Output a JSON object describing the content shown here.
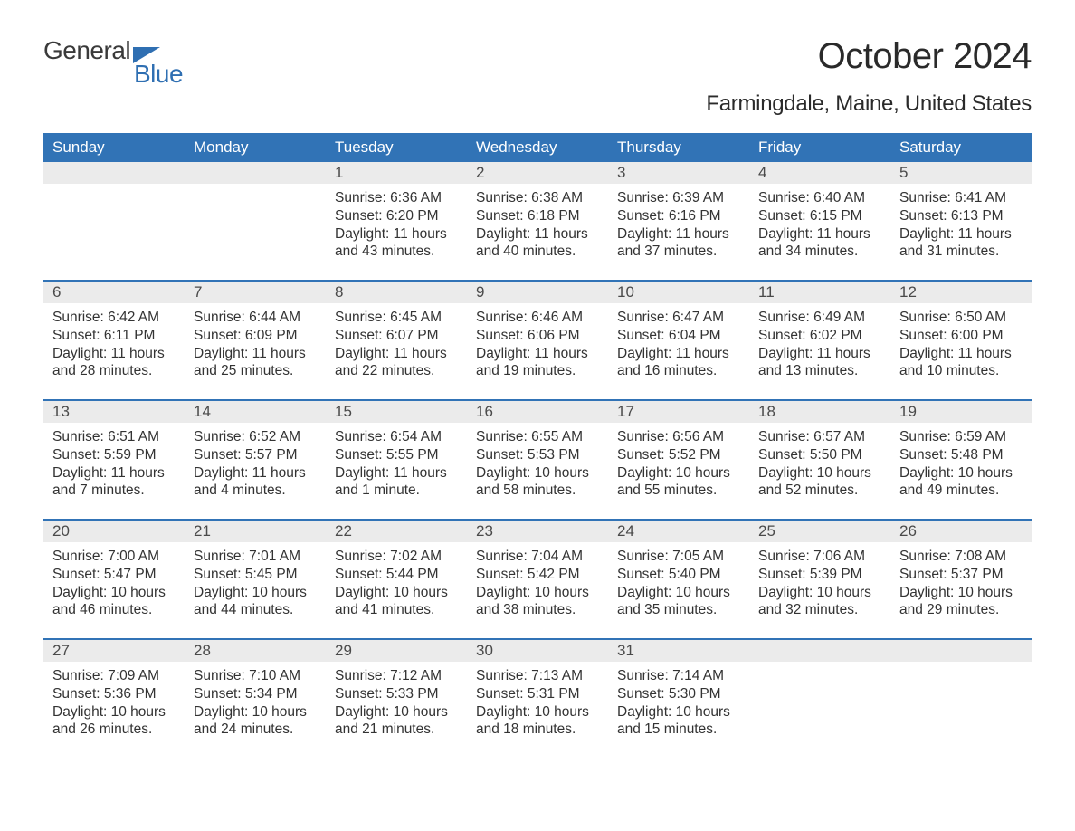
{
  "logo": {
    "word1": "General",
    "word2": "Blue"
  },
  "title": "October 2024",
  "location": "Farmingdale, Maine, United States",
  "colors": {
    "header_bg": "#3173b6",
    "header_text": "#ffffff",
    "daynum_bg": "#ebebeb",
    "body_text": "#333333",
    "logo_blue": "#2f6fb2",
    "week_border": "#3173b6"
  },
  "weekdays": [
    "Sunday",
    "Monday",
    "Tuesday",
    "Wednesday",
    "Thursday",
    "Friday",
    "Saturday"
  ],
  "weeks": [
    [
      {
        "n": "",
        "sunrise": "",
        "sunset": "",
        "daylight": ""
      },
      {
        "n": "",
        "sunrise": "",
        "sunset": "",
        "daylight": ""
      },
      {
        "n": "1",
        "sunrise": "Sunrise: 6:36 AM",
        "sunset": "Sunset: 6:20 PM",
        "daylight": "Daylight: 11 hours and 43 minutes."
      },
      {
        "n": "2",
        "sunrise": "Sunrise: 6:38 AM",
        "sunset": "Sunset: 6:18 PM",
        "daylight": "Daylight: 11 hours and 40 minutes."
      },
      {
        "n": "3",
        "sunrise": "Sunrise: 6:39 AM",
        "sunset": "Sunset: 6:16 PM",
        "daylight": "Daylight: 11 hours and 37 minutes."
      },
      {
        "n": "4",
        "sunrise": "Sunrise: 6:40 AM",
        "sunset": "Sunset: 6:15 PM",
        "daylight": "Daylight: 11 hours and 34 minutes."
      },
      {
        "n": "5",
        "sunrise": "Sunrise: 6:41 AM",
        "sunset": "Sunset: 6:13 PM",
        "daylight": "Daylight: 11 hours and 31 minutes."
      }
    ],
    [
      {
        "n": "6",
        "sunrise": "Sunrise: 6:42 AM",
        "sunset": "Sunset: 6:11 PM",
        "daylight": "Daylight: 11 hours and 28 minutes."
      },
      {
        "n": "7",
        "sunrise": "Sunrise: 6:44 AM",
        "sunset": "Sunset: 6:09 PM",
        "daylight": "Daylight: 11 hours and 25 minutes."
      },
      {
        "n": "8",
        "sunrise": "Sunrise: 6:45 AM",
        "sunset": "Sunset: 6:07 PM",
        "daylight": "Daylight: 11 hours and 22 minutes."
      },
      {
        "n": "9",
        "sunrise": "Sunrise: 6:46 AM",
        "sunset": "Sunset: 6:06 PM",
        "daylight": "Daylight: 11 hours and 19 minutes."
      },
      {
        "n": "10",
        "sunrise": "Sunrise: 6:47 AM",
        "sunset": "Sunset: 6:04 PM",
        "daylight": "Daylight: 11 hours and 16 minutes."
      },
      {
        "n": "11",
        "sunrise": "Sunrise: 6:49 AM",
        "sunset": "Sunset: 6:02 PM",
        "daylight": "Daylight: 11 hours and 13 minutes."
      },
      {
        "n": "12",
        "sunrise": "Sunrise: 6:50 AM",
        "sunset": "Sunset: 6:00 PM",
        "daylight": "Daylight: 11 hours and 10 minutes."
      }
    ],
    [
      {
        "n": "13",
        "sunrise": "Sunrise: 6:51 AM",
        "sunset": "Sunset: 5:59 PM",
        "daylight": "Daylight: 11 hours and 7 minutes."
      },
      {
        "n": "14",
        "sunrise": "Sunrise: 6:52 AM",
        "sunset": "Sunset: 5:57 PM",
        "daylight": "Daylight: 11 hours and 4 minutes."
      },
      {
        "n": "15",
        "sunrise": "Sunrise: 6:54 AM",
        "sunset": "Sunset: 5:55 PM",
        "daylight": "Daylight: 11 hours and 1 minute."
      },
      {
        "n": "16",
        "sunrise": "Sunrise: 6:55 AM",
        "sunset": "Sunset: 5:53 PM",
        "daylight": "Daylight: 10 hours and 58 minutes."
      },
      {
        "n": "17",
        "sunrise": "Sunrise: 6:56 AM",
        "sunset": "Sunset: 5:52 PM",
        "daylight": "Daylight: 10 hours and 55 minutes."
      },
      {
        "n": "18",
        "sunrise": "Sunrise: 6:57 AM",
        "sunset": "Sunset: 5:50 PM",
        "daylight": "Daylight: 10 hours and 52 minutes."
      },
      {
        "n": "19",
        "sunrise": "Sunrise: 6:59 AM",
        "sunset": "Sunset: 5:48 PM",
        "daylight": "Daylight: 10 hours and 49 minutes."
      }
    ],
    [
      {
        "n": "20",
        "sunrise": "Sunrise: 7:00 AM",
        "sunset": "Sunset: 5:47 PM",
        "daylight": "Daylight: 10 hours and 46 minutes."
      },
      {
        "n": "21",
        "sunrise": "Sunrise: 7:01 AM",
        "sunset": "Sunset: 5:45 PM",
        "daylight": "Daylight: 10 hours and 44 minutes."
      },
      {
        "n": "22",
        "sunrise": "Sunrise: 7:02 AM",
        "sunset": "Sunset: 5:44 PM",
        "daylight": "Daylight: 10 hours and 41 minutes."
      },
      {
        "n": "23",
        "sunrise": "Sunrise: 7:04 AM",
        "sunset": "Sunset: 5:42 PM",
        "daylight": "Daylight: 10 hours and 38 minutes."
      },
      {
        "n": "24",
        "sunrise": "Sunrise: 7:05 AM",
        "sunset": "Sunset: 5:40 PM",
        "daylight": "Daylight: 10 hours and 35 minutes."
      },
      {
        "n": "25",
        "sunrise": "Sunrise: 7:06 AM",
        "sunset": "Sunset: 5:39 PM",
        "daylight": "Daylight: 10 hours and 32 minutes."
      },
      {
        "n": "26",
        "sunrise": "Sunrise: 7:08 AM",
        "sunset": "Sunset: 5:37 PM",
        "daylight": "Daylight: 10 hours and 29 minutes."
      }
    ],
    [
      {
        "n": "27",
        "sunrise": "Sunrise: 7:09 AM",
        "sunset": "Sunset: 5:36 PM",
        "daylight": "Daylight: 10 hours and 26 minutes."
      },
      {
        "n": "28",
        "sunrise": "Sunrise: 7:10 AM",
        "sunset": "Sunset: 5:34 PM",
        "daylight": "Daylight: 10 hours and 24 minutes."
      },
      {
        "n": "29",
        "sunrise": "Sunrise: 7:12 AM",
        "sunset": "Sunset: 5:33 PM",
        "daylight": "Daylight: 10 hours and 21 minutes."
      },
      {
        "n": "30",
        "sunrise": "Sunrise: 7:13 AM",
        "sunset": "Sunset: 5:31 PM",
        "daylight": "Daylight: 10 hours and 18 minutes."
      },
      {
        "n": "31",
        "sunrise": "Sunrise: 7:14 AM",
        "sunset": "Sunset: 5:30 PM",
        "daylight": "Daylight: 10 hours and 15 minutes."
      },
      {
        "n": "",
        "sunrise": "",
        "sunset": "",
        "daylight": ""
      },
      {
        "n": "",
        "sunrise": "",
        "sunset": "",
        "daylight": ""
      }
    ]
  ]
}
